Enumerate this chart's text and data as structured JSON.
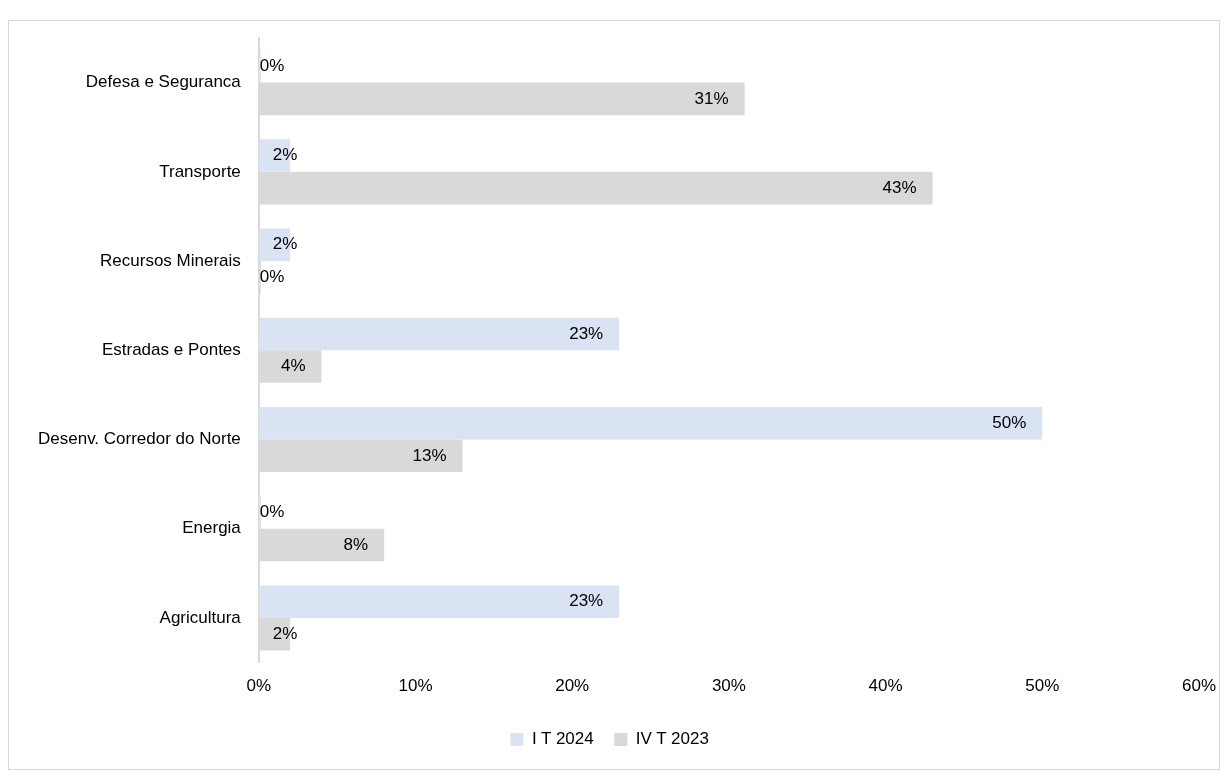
{
  "chart_data": {
    "type": "bar",
    "orientation": "horizontal",
    "categories": [
      "Defesa e Seguranca",
      "Transporte",
      "Recursos Minerais",
      "Estradas e Pontes",
      "Desenv. Corredor do Norte",
      "Energia",
      "Agricultura"
    ],
    "series": [
      {
        "name": "I T 2024",
        "color": "#dae3f3",
        "values": [
          0,
          2,
          2,
          23,
          50,
          0,
          23
        ],
        "value_labels": [
          "0%",
          "2%",
          "2%",
          "23%",
          "50%",
          "0%",
          "23%"
        ]
      },
      {
        "name": "IV T 2023",
        "color": "#d9d9d9",
        "values": [
          31,
          43,
          0,
          4,
          13,
          8,
          2
        ],
        "value_labels": [
          "31%",
          "43%",
          "0%",
          "4%",
          "13%",
          "8%",
          "2%"
        ]
      }
    ],
    "xlim": [
      0,
      60
    ],
    "xticks": [
      {
        "value": 0,
        "label": "0%"
      },
      {
        "value": 10,
        "label": "10%"
      },
      {
        "value": 20,
        "label": "20%"
      },
      {
        "value": 30,
        "label": "30%"
      },
      {
        "value": 40,
        "label": "40%"
      },
      {
        "value": 50,
        "label": "50%"
      },
      {
        "value": 60,
        "label": "60%"
      }
    ],
    "grid": false,
    "legend": "bottom"
  }
}
